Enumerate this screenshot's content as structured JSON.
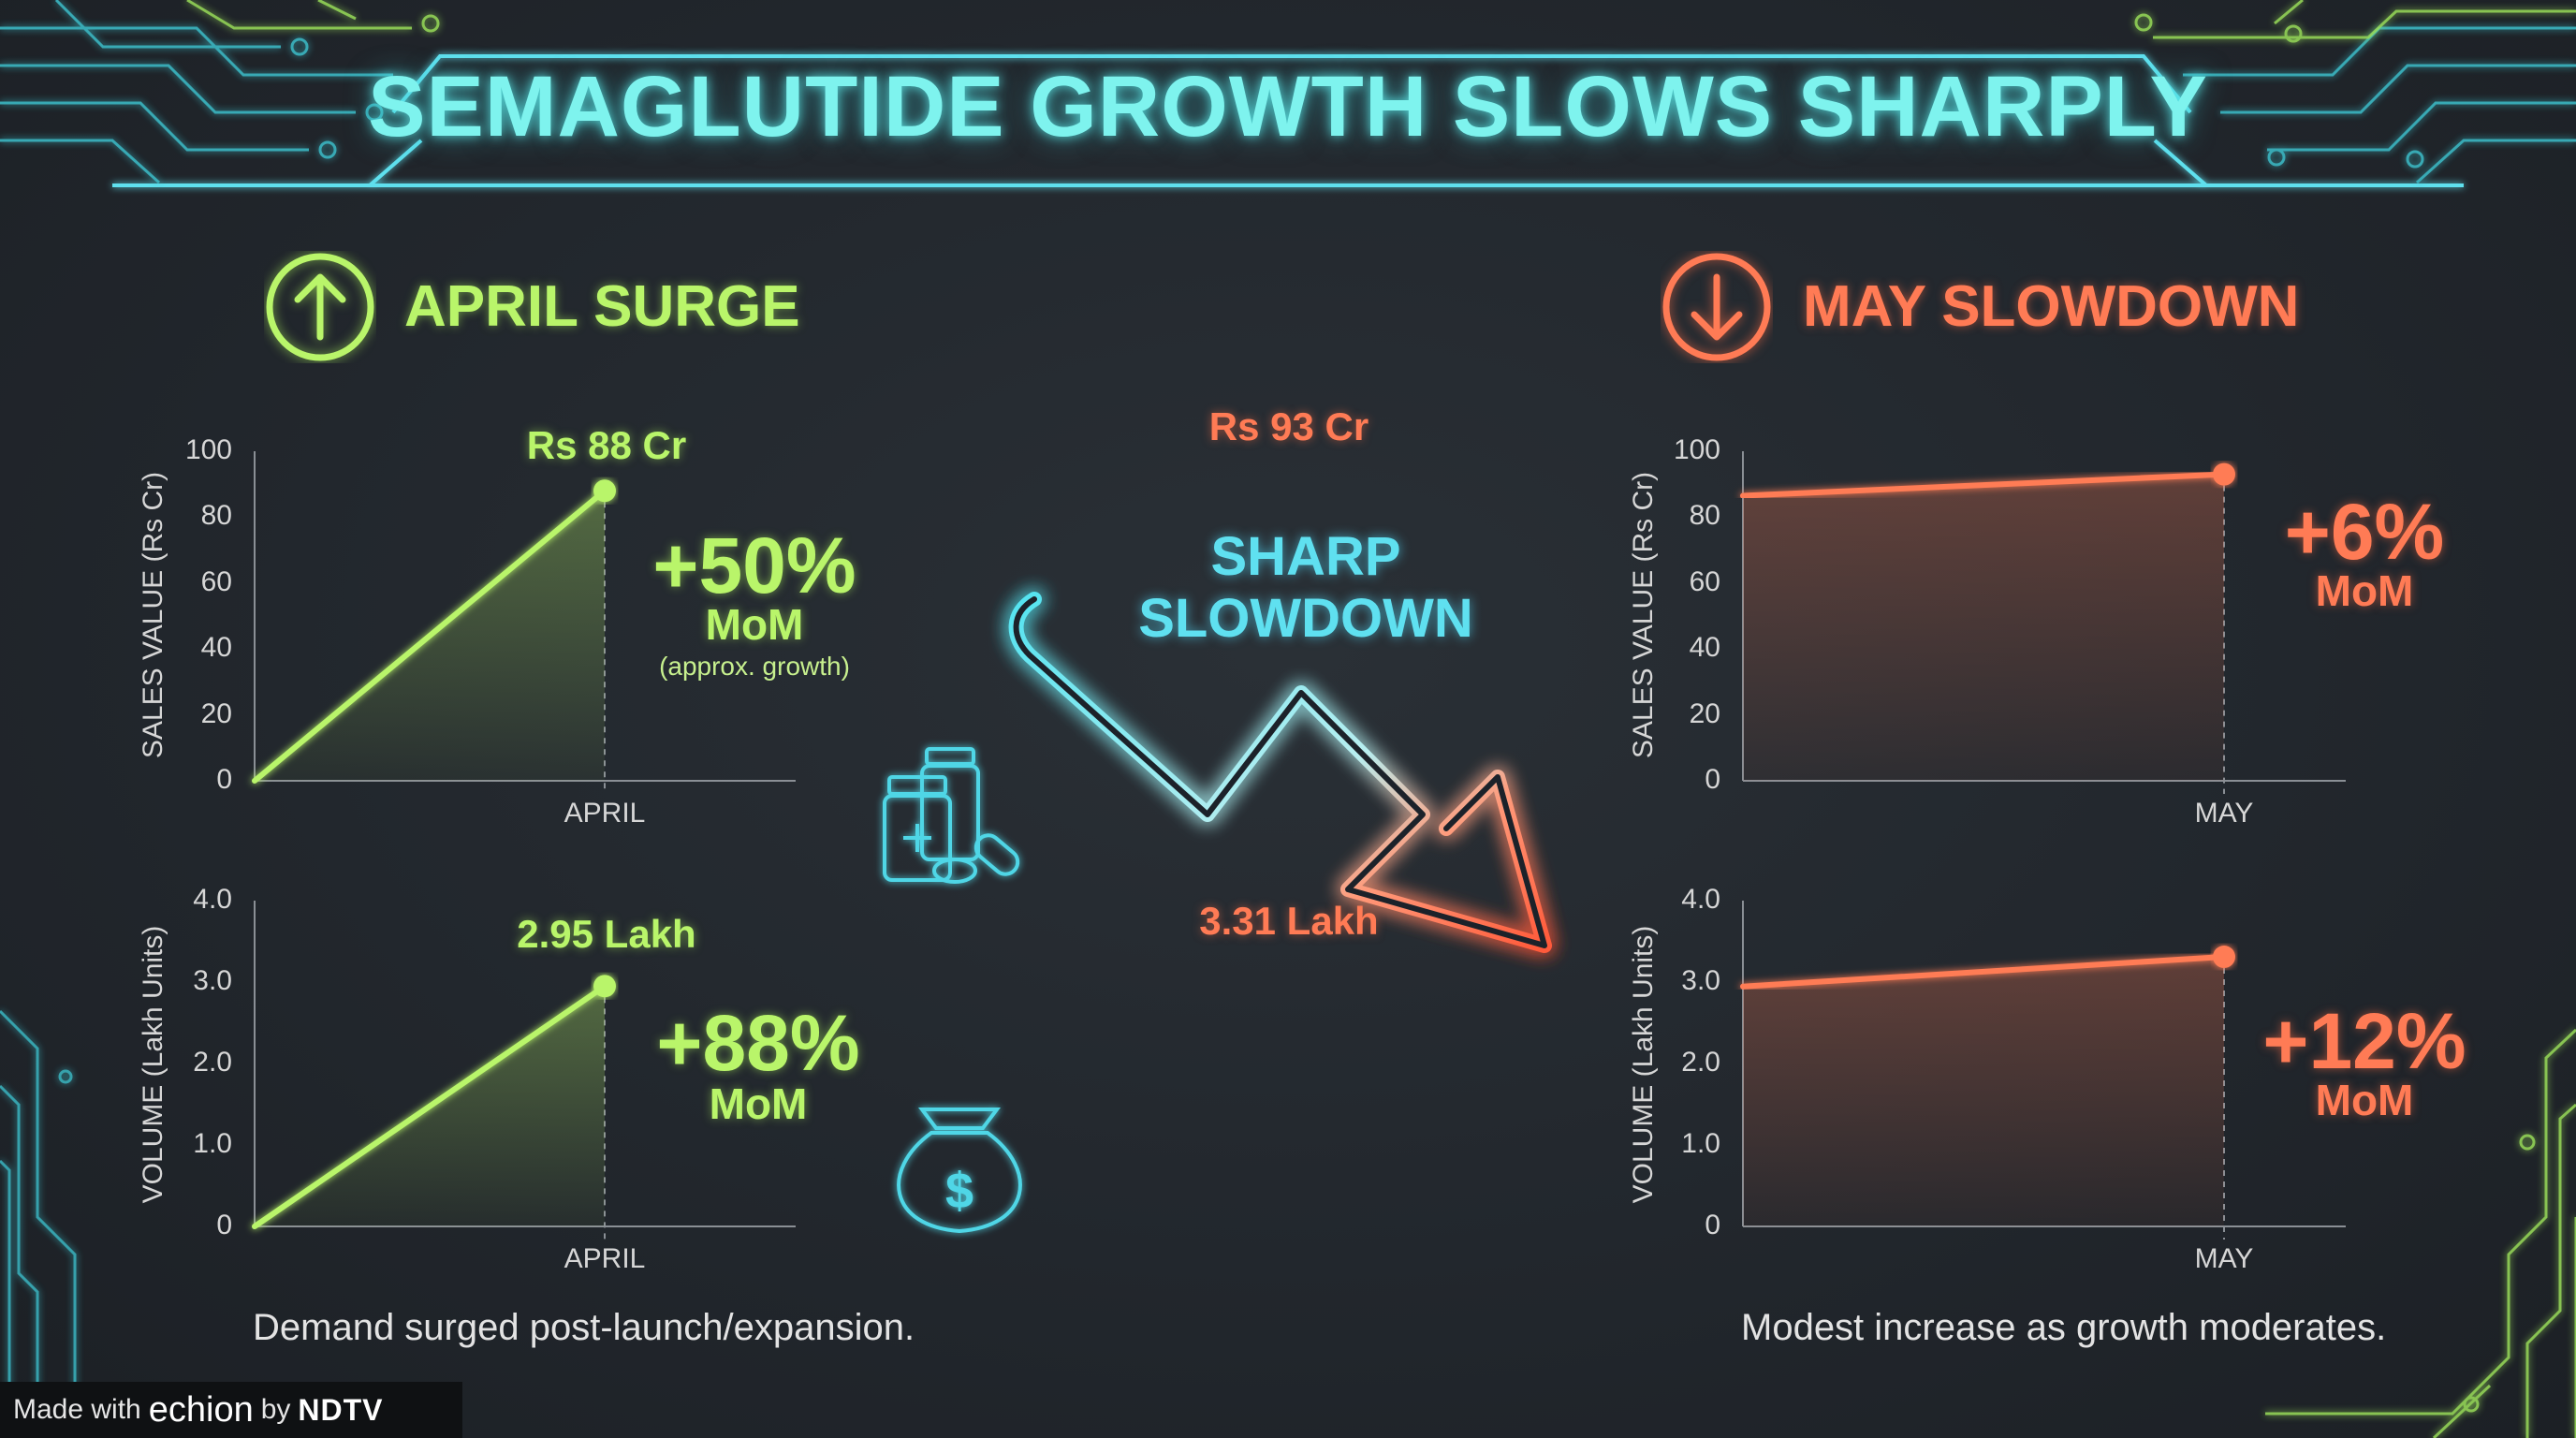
{
  "title": "SEMAGLUTIDE GROWTH SLOWS SHARPLY",
  "colors": {
    "april": "#b9f56a",
    "may": "#ff7b55",
    "accent": "#7ef3ee"
  },
  "left_panel": {
    "heading": "APRIL SURGE",
    "icon": "arrow-up-circle-icon",
    "sales_value_label": "Rs 88 Cr",
    "sales_growth": "+50%",
    "sales_growth_unit": "MoM",
    "sales_growth_note": "(approx. growth)",
    "volume_value_label": "2.95 Lakh",
    "volume_growth": "+88%",
    "volume_growth_unit": "MoM",
    "caption": "Demand surged post-launch/expansion."
  },
  "right_panel": {
    "heading": "MAY SLOWDOWN",
    "icon": "arrow-down-circle-icon",
    "sales_value_label": "Rs 93 Cr",
    "sales_growth": "+6%",
    "sales_growth_unit": "MoM",
    "volume_value_label": "3.31 Lakh",
    "volume_growth": "+12%",
    "volume_growth_unit": "MoM",
    "caption": "Modest increase as growth moderates."
  },
  "center": {
    "line1": "SHARP",
    "line2": "SLOWDOWN",
    "icon": "zigzag-down-arrow-icon"
  },
  "decor_icons": [
    "medicine-bottles-icon",
    "money-bag-icon"
  ],
  "footer": {
    "made_with": "Made with",
    "brand": "echion",
    "by": "by",
    "org": "NDTV"
  },
  "chart_data": [
    {
      "type": "area",
      "ylabel": "SALES VALUE (Rs Cr)",
      "yticks": [
        "0",
        "20",
        "40",
        "60",
        "80",
        "100"
      ],
      "ylim": [
        0,
        100
      ],
      "categories": [
        "APRIL"
      ],
      "series": [
        {
          "values": [
            88
          ]
        }
      ]
    },
    {
      "type": "area",
      "ylabel": "VOLUME (Lakh Units)",
      "yticks": [
        "0",
        "1.0",
        "2.0",
        "3.0",
        "4.0"
      ],
      "ylim": [
        0,
        4
      ],
      "categories": [
        "APRIL"
      ],
      "series": [
        {
          "values": [
            2.95
          ]
        }
      ]
    },
    {
      "type": "area",
      "ylabel": "SALES VALUE (Rs Cr)",
      "yticks": [
        "0",
        "20",
        "40",
        "60",
        "80",
        "100"
      ],
      "ylim": [
        0,
        100
      ],
      "categories": [
        "MAY"
      ],
      "series": [
        {
          "values": [
            93
          ]
        }
      ]
    },
    {
      "type": "area",
      "ylabel": "VOLUME (Lakh Units)",
      "yticks": [
        "0",
        "1.0",
        "2.0",
        "3.0",
        "4.0"
      ],
      "ylim": [
        0,
        4
      ],
      "categories": [
        "MAY"
      ],
      "series": [
        {
          "values": [
            3.31
          ]
        }
      ]
    }
  ]
}
